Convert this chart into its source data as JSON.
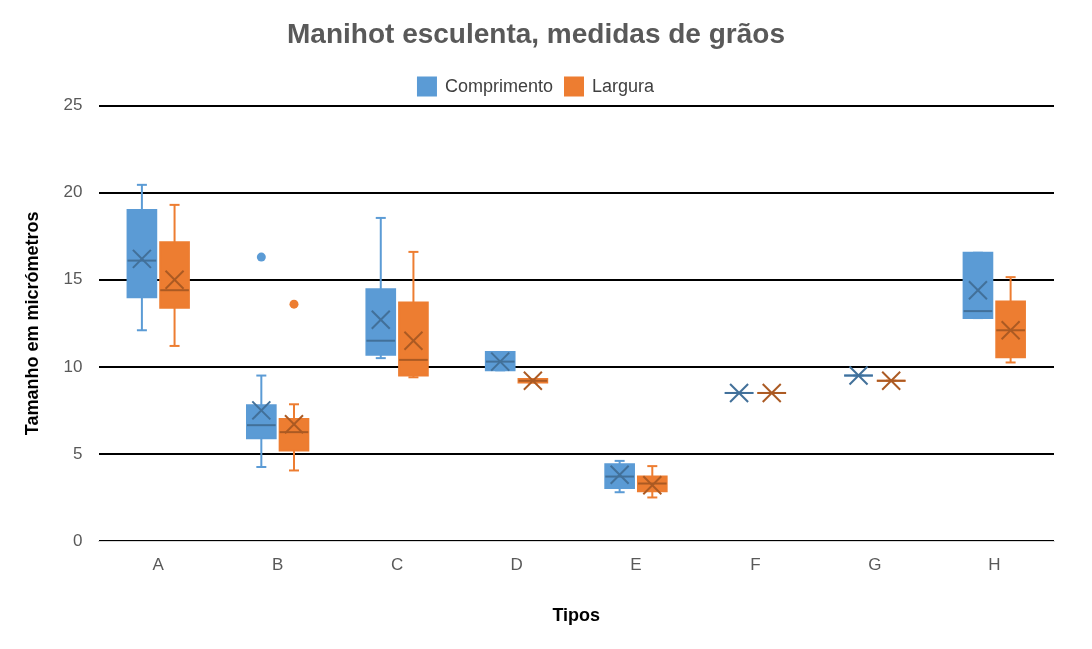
{
  "chart_data": {
    "type": "box",
    "title": "Manihot esculenta, medidas de grãos",
    "xlabel": "Tipos",
    "ylabel": "Tamanho em micrómetros",
    "categories": [
      "A",
      "B",
      "C",
      "D",
      "E",
      "F",
      "G",
      "H"
    ],
    "ylim": [
      0,
      25
    ],
    "yticks": [
      0,
      5,
      10,
      15,
      20,
      25
    ],
    "grid": "y",
    "legend": "top",
    "series": [
      {
        "name": "Comprimento",
        "color": "#5b9bd5",
        "boxes": [
          {
            "low": 12.1,
            "q1": 14.0,
            "median": 16.1,
            "q3": 19.0,
            "high": 20.45,
            "mean": 16.2
          },
          {
            "low": 4.25,
            "q1": 5.9,
            "median": 6.65,
            "q3": 7.8,
            "high": 9.5,
            "mean": 7.5,
            "outliers": [
              16.3
            ]
          },
          {
            "low": 10.5,
            "q1": 10.7,
            "median": 11.5,
            "q3": 14.45,
            "high": 18.55,
            "mean": 12.7
          },
          {
            "low": 9.8,
            "q1": 9.8,
            "median": 10.3,
            "q3": 10.85,
            "high": 10.85,
            "mean": 10.3
          },
          {
            "low": 2.8,
            "q1": 3.05,
            "median": 3.7,
            "q3": 4.4,
            "high": 4.6,
            "mean": 3.8
          },
          {
            "low": 8.5,
            "q1": 8.5,
            "median": 8.5,
            "q3": 8.5,
            "high": 8.5,
            "mean": 8.5
          },
          {
            "low": 9.5,
            "q1": 9.5,
            "median": 9.5,
            "q3": 9.5,
            "high": 9.5,
            "mean": 9.5
          },
          {
            "low": 12.8,
            "q1": 12.8,
            "median": 13.2,
            "q3": 16.55,
            "high": 16.55,
            "mean": 14.4
          }
        ]
      },
      {
        "name": "Largura",
        "color": "#ed7d31",
        "boxes": [
          {
            "low": 11.2,
            "q1": 13.4,
            "median": 14.4,
            "q3": 17.15,
            "high": 19.3,
            "mean": 15.0
          },
          {
            "low": 4.05,
            "q1": 5.2,
            "median": 6.25,
            "q3": 7.0,
            "high": 7.85,
            "mean": 6.7,
            "outliers": [
              13.6
            ]
          },
          {
            "low": 9.4,
            "q1": 9.5,
            "median": 10.4,
            "q3": 13.7,
            "high": 16.6,
            "mean": 11.5
          },
          {
            "low": 9.1,
            "q1": 9.1,
            "median": 9.2,
            "q3": 9.3,
            "high": 9.3,
            "mean": 9.2
          },
          {
            "low": 2.5,
            "q1": 2.85,
            "median": 3.3,
            "q3": 3.7,
            "high": 4.3,
            "mean": 3.2
          },
          {
            "low": 8.5,
            "q1": 8.5,
            "median": 8.5,
            "q3": 8.5,
            "high": 8.5,
            "mean": 8.5
          },
          {
            "low": 9.2,
            "q1": 9.2,
            "median": 9.2,
            "q3": 9.2,
            "high": 9.2,
            "mean": 9.2
          },
          {
            "low": 10.25,
            "q1": 10.55,
            "median": 12.1,
            "q3": 13.75,
            "high": 15.15,
            "mean": 12.1
          }
        ]
      }
    ]
  }
}
